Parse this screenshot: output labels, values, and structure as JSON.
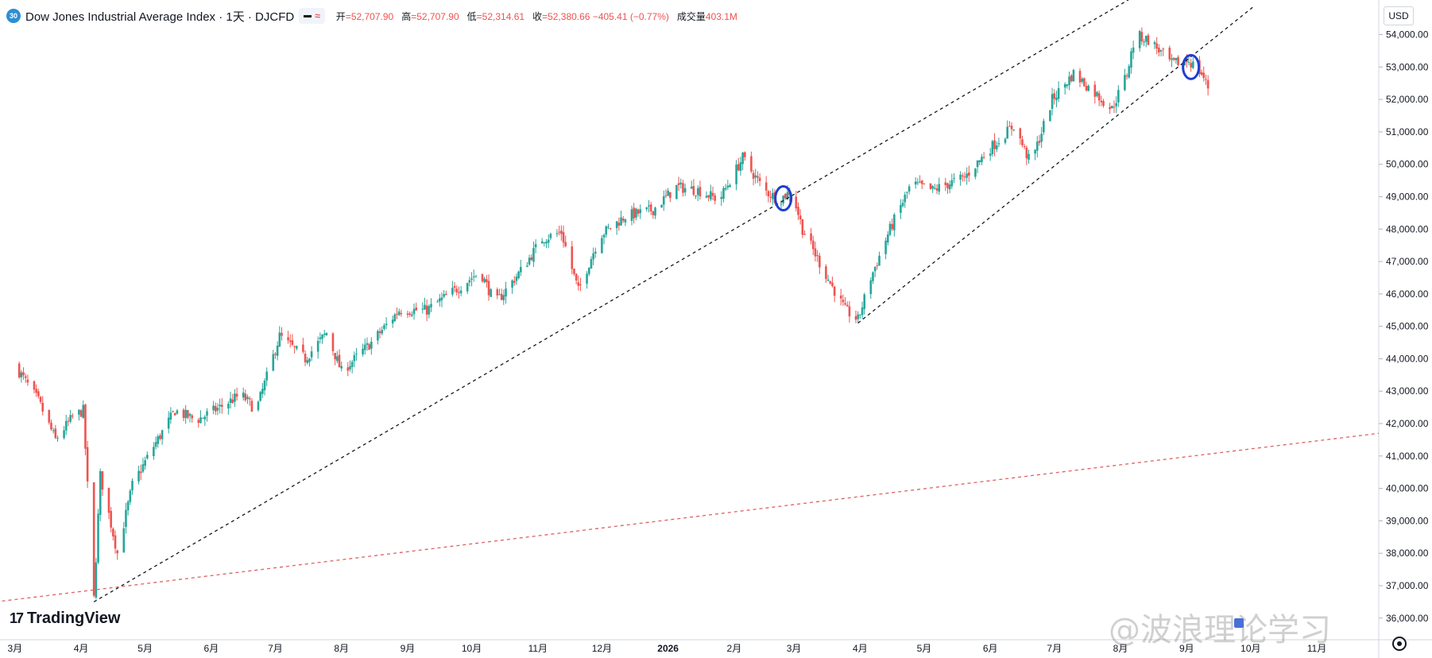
{
  "header": {
    "symbol_badge": "30",
    "title": "Dow Jones Industrial Average Index · 1天 · DJCFD",
    "open_label": "开",
    "open_value": "=52,707.90",
    "high_label": "高",
    "high_value": "=52,707.90",
    "low_label": "低",
    "low_value": "=52,314.61",
    "close_label": "收",
    "close_value": "=52,380.66 −405.41 (−0.77%)",
    "volume_label": "成交量",
    "volume_value": "403.1M"
  },
  "currency": "USD",
  "branding": {
    "logo_mark": "17",
    "logo_text": "TradingView"
  },
  "watermark": "@波浪理论学习",
  "colors": {
    "up": "#26a69a",
    "down": "#ef5350",
    "trend": "#131722",
    "support": "#e06060",
    "marker": "#1e3fd0"
  },
  "chart_data": {
    "type": "candlestick",
    "y_axis_ticks": [
      "54,000.00",
      "53,000.00",
      "52,000.00",
      "51,000.00",
      "50,000.00",
      "49,000.00",
      "48,000.00",
      "47,000.00",
      "46,000.00",
      "45,000.00",
      "44,000.00",
      "43,000.00",
      "42,000.00",
      "41,000.00",
      "40,000.00",
      "39,000.00",
      "38,000.00",
      "37,000.00",
      "36,000.00"
    ],
    "ylim": [
      35700,
      54700
    ],
    "x_axis_ticks": [
      "3月",
      "4月",
      "5月",
      "6月",
      "7月",
      "8月",
      "9月",
      "10月",
      "11月",
      "12月",
      "2026",
      "2月",
      "3月",
      "4月",
      "5月",
      "6月",
      "7月",
      "8月",
      "9月",
      "10月",
      "11月"
    ],
    "price_path": [
      [
        "2025-03-01",
        43800
      ],
      [
        "2025-03-12",
        42700
      ],
      [
        "2025-03-20",
        41500
      ],
      [
        "2025-03-28",
        42200
      ],
      [
        "2025-04-02",
        42400
      ],
      [
        "2025-04-07",
        36600
      ],
      [
        "2025-04-10",
        40400
      ],
      [
        "2025-04-18",
        38000
      ],
      [
        "2025-04-25",
        40100
      ],
      [
        "2025-05-05",
        41300
      ],
      [
        "2025-05-15",
        42400
      ],
      [
        "2025-05-25",
        42100
      ],
      [
        "2025-06-05",
        42500
      ],
      [
        "2025-06-15",
        42900
      ],
      [
        "2025-06-22",
        42400
      ],
      [
        "2025-07-03",
        44700
      ],
      [
        "2025-07-15",
        44000
      ],
      [
        "2025-07-25",
        44800
      ],
      [
        "2025-08-01",
        43600
      ],
      [
        "2025-08-15",
        44500
      ],
      [
        "2025-08-28",
        45500
      ],
      [
        "2025-09-10",
        45500
      ],
      [
        "2025-09-25",
        46200
      ],
      [
        "2025-10-05",
        46700
      ],
      [
        "2025-10-12",
        45700
      ],
      [
        "2025-10-25",
        46800
      ],
      [
        "2025-11-03",
        47700
      ],
      [
        "2025-11-12",
        47900
      ],
      [
        "2025-11-20",
        46100
      ],
      [
        "2025-11-30",
        47800
      ],
      [
        "2025-12-12",
        48400
      ],
      [
        "2025-12-25",
        48600
      ],
      [
        "2026-01-05",
        49300
      ],
      [
        "2026-01-15",
        49200
      ],
      [
        "2026-01-25",
        48900
      ],
      [
        "2026-02-05",
        50200
      ],
      [
        "2026-02-15",
        49200
      ],
      [
        "2026-02-22",
        48900
      ],
      [
        "2026-02-28",
        49200
      ],
      [
        "2026-03-05",
        48000
      ],
      [
        "2026-03-15",
        46700
      ],
      [
        "2026-03-25",
        45500
      ],
      [
        "2026-03-31",
        45200
      ],
      [
        "2026-04-06",
        46500
      ],
      [
        "2026-04-15",
        48000
      ],
      [
        "2026-04-25",
        49400
      ],
      [
        "2026-05-05",
        49200
      ],
      [
        "2026-05-20",
        49600
      ],
      [
        "2026-06-01",
        50500
      ],
      [
        "2026-06-12",
        51200
      ],
      [
        "2026-06-20",
        50000
      ],
      [
        "2026-06-30",
        52000
      ],
      [
        "2026-07-10",
        52800
      ],
      [
        "2026-07-20",
        52200
      ],
      [
        "2026-07-28",
        51700
      ],
      [
        "2026-08-04",
        52800
      ],
      [
        "2026-08-08",
        54000
      ],
      [
        "2026-08-15",
        53800
      ],
      [
        "2026-08-25",
        53100
      ],
      [
        "2026-09-02",
        53200
      ],
      [
        "2026-09-08",
        52800
      ],
      [
        "2026-09-11",
        52380
      ]
    ],
    "trendlines": [
      {
        "name": "upper-channel",
        "from": [
          "2025-04-07",
          36500
        ],
        "to": [
          "2026-08-08",
          55200
        ],
        "style": "dashed"
      },
      {
        "name": "lower-channel",
        "from": [
          "2026-03-31",
          45100
        ],
        "to": [
          "2026-10-03",
          54900
        ],
        "style": "dashed"
      },
      {
        "name": "long-support",
        "from": [
          "2025-02-20",
          36500
        ],
        "to": [
          "2026-11-30",
          41700
        ],
        "style": "dashed-red"
      }
    ],
    "markers": [
      {
        "name": "breakdown-ellipse-1",
        "date": "2026-02-24",
        "price": 48950
      },
      {
        "name": "breakdown-ellipse-2",
        "date": "2026-09-03",
        "price": 53000
      }
    ]
  }
}
